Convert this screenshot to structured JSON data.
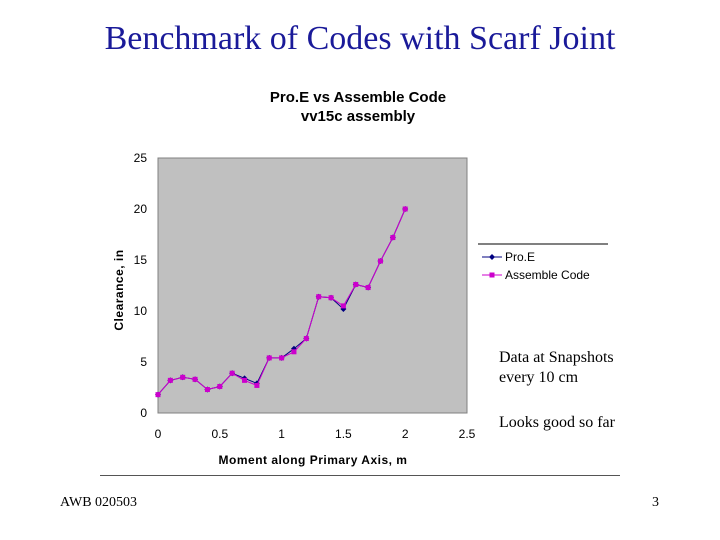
{
  "slide": {
    "title": "Benchmark of Codes with Scarf Joint",
    "note1_line1": "Data at Snapshots",
    "note1_line2": "every 10 cm",
    "note2": "Looks good so far",
    "footer_left": "AWB 020503",
    "page_number": "3"
  },
  "chart_data": {
    "type": "line",
    "title_line1": "Pro.E vs Assemble Code",
    "title_line2": "vv15c assembly",
    "xlabel": "Moment along Primary Axis, m",
    "ylabel": "Clearance, in",
    "xlim": [
      0,
      2.5
    ],
    "ylim": [
      0,
      25
    ],
    "xticks": [
      "0",
      "0.5",
      "1",
      "1.5",
      "2",
      "2.5"
    ],
    "yticks": [
      "0",
      "5",
      "10",
      "15",
      "20",
      "25"
    ],
    "legend_position": "right",
    "colors": {
      "plot_bg": "#c0c0c0",
      "proe": "#000080",
      "assemble": "#cc00cc"
    },
    "series": [
      {
        "name": "Pro.E",
        "points": [
          [
            0.0,
            1.8
          ],
          [
            0.1,
            3.2
          ],
          [
            0.2,
            3.5
          ],
          [
            0.3,
            3.3
          ],
          [
            0.4,
            2.3
          ],
          [
            0.5,
            2.6
          ],
          [
            0.6,
            3.9
          ],
          [
            0.7,
            3.4
          ],
          [
            0.8,
            2.9
          ],
          [
            0.9,
            5.4
          ],
          [
            1.0,
            5.4
          ],
          [
            1.1,
            6.3
          ],
          [
            1.2,
            7.3
          ],
          [
            1.3,
            11.4
          ],
          [
            1.4,
            11.3
          ],
          [
            1.5,
            10.2
          ],
          [
            1.6,
            12.6
          ],
          [
            1.7,
            12.3
          ],
          [
            1.8,
            14.9
          ],
          [
            1.9,
            17.2
          ],
          [
            2.0,
            20.0
          ]
        ]
      },
      {
        "name": "Assemble Code",
        "points": [
          [
            0.0,
            1.8
          ],
          [
            0.1,
            3.2
          ],
          [
            0.2,
            3.5
          ],
          [
            0.3,
            3.3
          ],
          [
            0.4,
            2.3
          ],
          [
            0.5,
            2.6
          ],
          [
            0.6,
            3.9
          ],
          [
            0.7,
            3.2
          ],
          [
            0.8,
            2.7
          ],
          [
            0.9,
            5.4
          ],
          [
            1.0,
            5.4
          ],
          [
            1.1,
            6.0
          ],
          [
            1.2,
            7.3
          ],
          [
            1.3,
            11.4
          ],
          [
            1.4,
            11.3
          ],
          [
            1.5,
            10.5
          ],
          [
            1.6,
            12.6
          ],
          [
            1.7,
            12.3
          ],
          [
            1.8,
            14.9
          ],
          [
            1.9,
            17.2
          ],
          [
            2.0,
            20.0
          ]
        ]
      }
    ]
  }
}
